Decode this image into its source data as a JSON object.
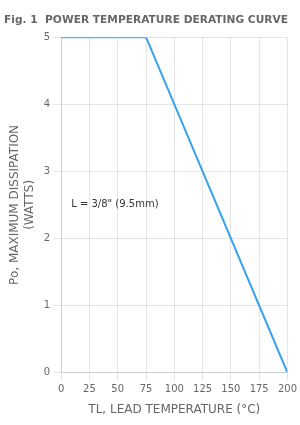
{
  "chart_data": {
    "type": "line",
    "title": "Fig. 1  POWER TEMPERATURE DERATING CURVE",
    "xlabel": "TL, LEAD TEMPERATURE (°C)",
    "ylabel": "Po, MAXIMUM DISSIPATION\n(WATTS)",
    "annotation": "L = 3/8\" (9.5mm)",
    "x": [
      0,
      75,
      200
    ],
    "values": [
      5,
      5,
      0
    ],
    "xlim": [
      0,
      200
    ],
    "ylim": [
      0,
      5
    ],
    "xticks": [
      0,
      25,
      50,
      75,
      100,
      125,
      150,
      175,
      200
    ],
    "yticks": [
      0,
      1,
      2,
      3,
      4,
      5
    ],
    "grid": true
  }
}
